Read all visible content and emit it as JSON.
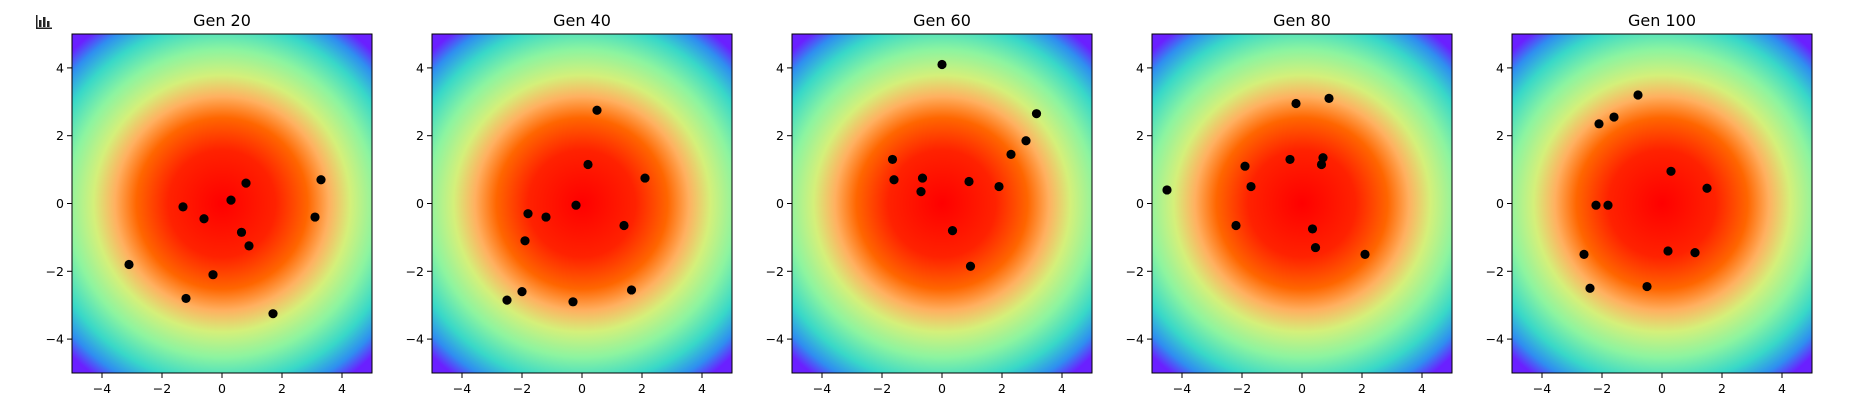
{
  "toolbar": {
    "icon": "bar-chart-icon"
  },
  "colormap": "rainbow",
  "chart_data": [
    {
      "type": "scatter",
      "title": "Gen 20",
      "xlim": [
        -5,
        5
      ],
      "ylim": [
        -5,
        5
      ],
      "xticks": [
        -4,
        -2,
        0,
        2,
        4
      ],
      "yticks": [
        -4,
        -2,
        0,
        2,
        4
      ],
      "background": "radial heatmap, peak (red) at origin",
      "marker_color": "#000000",
      "points": [
        [
          -1.3,
          -0.1
        ],
        [
          -0.6,
          -0.45
        ],
        [
          0.3,
          0.1
        ],
        [
          0.8,
          0.6
        ],
        [
          3.3,
          0.7
        ],
        [
          3.1,
          -0.4
        ],
        [
          0.65,
          -0.85
        ],
        [
          0.9,
          -1.25
        ],
        [
          -3.1,
          -1.8
        ],
        [
          -0.3,
          -2.1
        ],
        [
          -1.2,
          -2.8
        ],
        [
          1.7,
          -3.25
        ]
      ]
    },
    {
      "type": "scatter",
      "title": "Gen 40",
      "xlim": [
        -5,
        5
      ],
      "ylim": [
        -5,
        5
      ],
      "xticks": [
        -4,
        -2,
        0,
        2,
        4
      ],
      "yticks": [
        -4,
        -2,
        0,
        2,
        4
      ],
      "background": "radial heatmap, peak (red) at origin",
      "marker_color": "#000000",
      "points": [
        [
          0.5,
          2.75
        ],
        [
          0.2,
          1.15
        ],
        [
          2.1,
          0.75
        ],
        [
          -0.2,
          -0.05
        ],
        [
          -1.8,
          -0.3
        ],
        [
          -1.2,
          -0.4
        ],
        [
          1.4,
          -0.65
        ],
        [
          -1.9,
          -1.1
        ],
        [
          -2.0,
          -2.6
        ],
        [
          -2.5,
          -2.85
        ],
        [
          -0.3,
          -2.9
        ],
        [
          1.65,
          -2.55
        ]
      ]
    },
    {
      "type": "scatter",
      "title": "Gen 60",
      "xlim": [
        -5,
        5
      ],
      "ylim": [
        -5,
        5
      ],
      "xticks": [
        -4,
        -2,
        0,
        2,
        4
      ],
      "yticks": [
        -4,
        -2,
        0,
        2,
        4
      ],
      "background": "radial heatmap, peak (red) at origin",
      "marker_color": "#000000",
      "points": [
        [
          0.0,
          4.1
        ],
        [
          3.15,
          2.65
        ],
        [
          2.8,
          1.85
        ],
        [
          2.3,
          1.45
        ],
        [
          -1.65,
          1.3
        ],
        [
          -1.6,
          0.7
        ],
        [
          -0.65,
          0.75
        ],
        [
          -0.7,
          0.35
        ],
        [
          0.9,
          0.65
        ],
        [
          1.9,
          0.5
        ],
        [
          0.35,
          -0.8
        ],
        [
          0.95,
          -1.85
        ]
      ]
    },
    {
      "type": "scatter",
      "title": "Gen 80",
      "xlim": [
        -5,
        5
      ],
      "ylim": [
        -5,
        5
      ],
      "xticks": [
        -4,
        -2,
        0,
        2,
        4
      ],
      "yticks": [
        -4,
        -2,
        0,
        2,
        4
      ],
      "background": "radial heatmap, peak (red) at origin",
      "marker_color": "#000000",
      "points": [
        [
          -0.2,
          2.95
        ],
        [
          0.9,
          3.1
        ],
        [
          -1.9,
          1.1
        ],
        [
          -0.4,
          1.3
        ],
        [
          0.7,
          1.35
        ],
        [
          0.65,
          1.15
        ],
        [
          -1.7,
          0.5
        ],
        [
          -4.5,
          0.4
        ],
        [
          -2.2,
          -0.65
        ],
        [
          0.35,
          -0.75
        ],
        [
          0.45,
          -1.3
        ],
        [
          2.1,
          -1.5
        ]
      ]
    },
    {
      "type": "scatter",
      "title": "Gen 100",
      "xlim": [
        -5,
        5
      ],
      "ylim": [
        -5,
        5
      ],
      "xticks": [
        -4,
        -2,
        0,
        2,
        4
      ],
      "yticks": [
        -4,
        -2,
        0,
        2,
        4
      ],
      "background": "radial heatmap, peak (red) at origin",
      "marker_color": "#000000",
      "points": [
        [
          -0.8,
          3.2
        ],
        [
          -1.6,
          2.55
        ],
        [
          -2.1,
          2.35
        ],
        [
          0.3,
          0.95
        ],
        [
          1.5,
          0.45
        ],
        [
          -2.2,
          -0.05
        ],
        [
          -1.8,
          -0.05
        ],
        [
          -2.6,
          -1.5
        ],
        [
          0.2,
          -1.4
        ],
        [
          1.1,
          -1.45
        ],
        [
          -2.4,
          -2.5
        ],
        [
          -0.5,
          -2.45
        ]
      ]
    }
  ]
}
